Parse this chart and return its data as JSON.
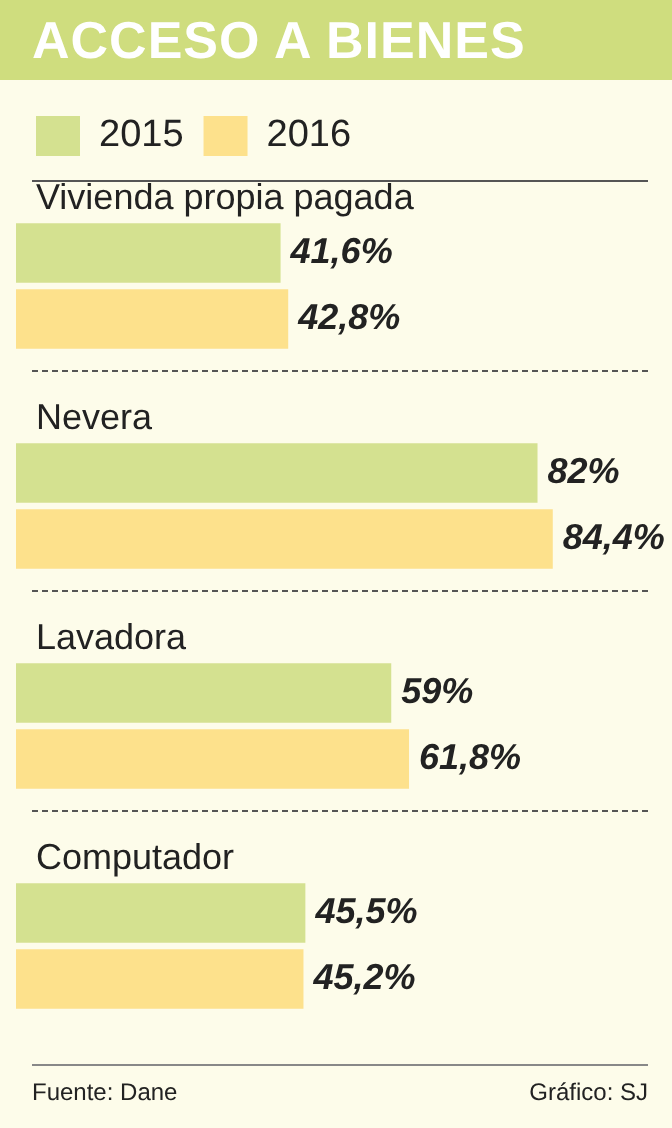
{
  "chart_data": {
    "type": "bar",
    "orientation": "horizontal",
    "title": "ACCESO A BIENES",
    "categories": [
      "Vivienda propia pagada",
      "Nevera",
      "Lavadora",
      "Computador"
    ],
    "series": [
      {
        "name": "2015",
        "color": "#d4e190",
        "values": [
          41.6,
          82,
          59,
          45.5
        ],
        "value_labels": [
          "41,6%",
          "82%",
          "59%",
          "45,5%"
        ]
      },
      {
        "name": "2016",
        "color": "#fde18c",
        "values": [
          42.8,
          84.4,
          61.8,
          45.2
        ],
        "value_labels": [
          "42,8%",
          "84,4%",
          "61,8%",
          "45,2%"
        ]
      }
    ],
    "xlim": [
      0,
      100
    ],
    "tick_labels": "y",
    "legend": "top left",
    "annotations": [
      "Fuente: Dane",
      "Gráfico: SJ"
    ]
  }
}
